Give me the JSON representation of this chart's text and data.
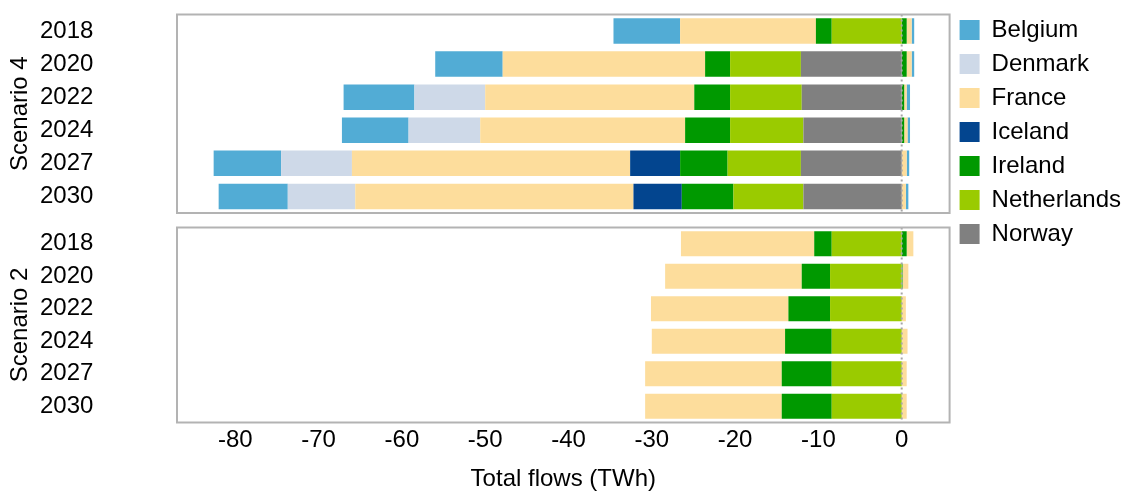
{
  "chart_data": [
    {
      "type": "bar",
      "orientation": "horizontal",
      "stacked": true,
      "ylabel": "Scenario 4",
      "categories": [
        "2018",
        "2020",
        "2022",
        "2024",
        "2027",
        "2030"
      ],
      "xlim": [
        -87,
        5.75
      ],
      "xticks": [
        -80,
        -70,
        -60,
        -50,
        -40,
        -30,
        -20,
        -10,
        0
      ],
      "tick_labels": "y",
      "legend": "right",
      "ref_lines": [
        {
          "axis": "x",
          "value": 0,
          "color": "#a6a6a6",
          "line_style": "dotted"
        }
      ],
      "series": [
        {
          "name": "Norway",
          "color": "#808080",
          "values": [
            null,
            -12.1,
            -12,
            -11.8,
            -12.1,
            -11.8
          ]
        },
        {
          "name": "Netherlands",
          "color": "#9acb00",
          "values": [
            -8.4,
            -8.5,
            -8.6,
            -8.8,
            -8.8,
            -8.4
          ]
        },
        {
          "name": "Ireland",
          "color": "#009900",
          "values": [
            -1.9,
            -3.0,
            -4.3,
            -5.4,
            -5.7,
            -6.2
          ]
        },
        {
          "name": "Iceland",
          "color": "#03458f",
          "values": [
            null,
            null,
            null,
            null,
            -6.0,
            -5.8
          ]
        },
        {
          "name": "France",
          "color": "#fddd9c",
          "values": [
            -16.3,
            -24.3,
            -25.1,
            -24.6,
            -33.4,
            -33.4
          ]
        },
        {
          "name": "Denmark",
          "color": "#ced9e8",
          "values": [
            null,
            null,
            -8.5,
            -8.6,
            -8.5,
            -8.1
          ]
        },
        {
          "name": "Belgium",
          "color": "#52acd5",
          "values": [
            -8.0,
            -8.1,
            -8.5,
            -8.0,
            -8.1,
            -8.3
          ]
        },
        {
          "color": "#009900",
          "values": [
            0.6,
            0.6,
            0.3,
            0.3,
            null,
            null
          ]
        },
        {
          "color": "#fddd9c",
          "values": [
            0.6,
            0.6,
            0.3,
            0.4,
            0.6,
            0.5
          ]
        },
        {
          "color": "#52acd5",
          "values": [
            0.3,
            0.3,
            0.4,
            0.3,
            0.3,
            0.3
          ]
        }
      ]
    },
    {
      "type": "bar",
      "orientation": "horizontal",
      "stacked": true,
      "ylabel": "Scenario 2",
      "xlabel": "Total flows (TWh)",
      "categories": [
        "2018",
        "2020",
        "2022",
        "2024",
        "2027",
        "2030"
      ],
      "xlim": [
        -87,
        5.75
      ],
      "xticks": [
        -80,
        -70,
        -60,
        -50,
        -40,
        -30,
        -20,
        -10,
        0
      ],
      "ref_lines": [
        {
          "axis": "x",
          "value": 0,
          "color": "#a6a6a6",
          "line_style": "dotted"
        }
      ],
      "series": [
        {
          "color": "#9acb00",
          "values": [
            -8.4,
            -8.6,
            -8.6,
            -8.4,
            -8.4,
            -8.4
          ]
        },
        {
          "color": "#009900",
          "values": [
            -2.1,
            -3.4,
            -5.0,
            -5.6,
            -6.0,
            -6.0
          ]
        },
        {
          "color": "#fddd9c",
          "values": [
            -16.0,
            -16.4,
            -16.5,
            -16.0,
            -16.4,
            -16.4
          ]
        },
        {
          "color": "#009900",
          "values": [
            0.6,
            0.1,
            null,
            null,
            null,
            null
          ]
        },
        {
          "color": "#fddd9c",
          "values": [
            0.8,
            0.7,
            0.5,
            0.7,
            0.6,
            0.6
          ]
        }
      ]
    }
  ]
}
